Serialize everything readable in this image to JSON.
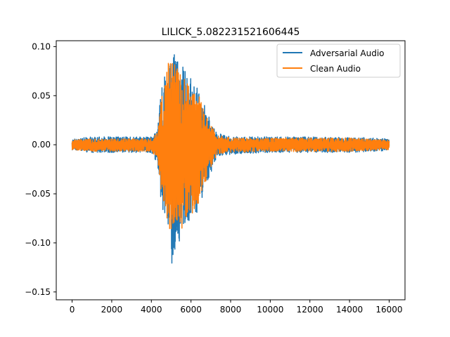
{
  "chart_data": {
    "type": "line",
    "title": "LILICK_5.082231521606445",
    "xlabel": "",
    "ylabel": "",
    "xlim": [
      -800,
      16800
    ],
    "ylim": [
      -0.158,
      0.106
    ],
    "x_ticks": [
      0,
      2000,
      4000,
      6000,
      8000,
      10000,
      12000,
      14000,
      16000
    ],
    "y_ticks": [
      -0.15,
      -0.1,
      -0.05,
      0.0,
      0.05,
      0.1
    ],
    "x_tick_labels": [
      "0",
      "2000",
      "4000",
      "6000",
      "8000",
      "10000",
      "12000",
      "14000",
      "16000"
    ],
    "y_tick_labels": [
      "−0.15",
      "−0.10",
      "−0.05",
      "0.00",
      "0.05",
      "0.10"
    ],
    "grid": false,
    "legend_position": "upper right",
    "series": [
      {
        "name": "Adversarial Audio",
        "color": "#1f77b4",
        "x": [
          0,
          1000,
          2000,
          3000,
          4000,
          4300,
          4500,
          4700,
          4900,
          5000,
          5100,
          5300,
          5500,
          5700,
          5900,
          6100,
          6300,
          6500,
          6700,
          6900,
          7100,
          7300,
          8000,
          10000,
          12000,
          14000,
          16000
        ],
        "max": [
          0.006,
          0.008,
          0.008,
          0.008,
          0.008,
          0.015,
          0.06,
          0.08,
          0.085,
          0.098,
          0.095,
          0.09,
          0.085,
          0.078,
          0.07,
          0.067,
          0.06,
          0.05,
          0.04,
          0.03,
          0.02,
          0.012,
          0.008,
          0.008,
          0.008,
          0.008,
          0.006
        ],
        "min": [
          -0.006,
          -0.008,
          -0.008,
          -0.008,
          -0.008,
          -0.02,
          -0.06,
          -0.075,
          -0.1,
          -0.146,
          -0.11,
          -0.105,
          -0.095,
          -0.085,
          -0.08,
          -0.075,
          -0.07,
          -0.06,
          -0.045,
          -0.035,
          -0.025,
          -0.012,
          -0.01,
          -0.008,
          -0.008,
          -0.008,
          -0.006
        ]
      },
      {
        "name": "Clean Audio",
        "color": "#ff7f0e",
        "x": [
          0,
          1000,
          2000,
          3000,
          4000,
          4300,
          4500,
          4700,
          4900,
          5000,
          5100,
          5300,
          5500,
          5700,
          5900,
          6100,
          6300,
          6500,
          6700,
          6900,
          7100,
          7300,
          8000,
          10000,
          12000,
          14000,
          16000
        ],
        "max": [
          0.005,
          0.006,
          0.006,
          0.006,
          0.007,
          0.012,
          0.05,
          0.068,
          0.09,
          0.088,
          0.085,
          0.08,
          0.075,
          0.07,
          0.065,
          0.06,
          0.055,
          0.045,
          0.035,
          0.025,
          0.018,
          0.01,
          0.007,
          0.007,
          0.007,
          0.007,
          0.005
        ],
        "min": [
          -0.005,
          -0.007,
          -0.007,
          -0.007,
          -0.007,
          -0.015,
          -0.05,
          -0.07,
          -0.09,
          -0.12,
          -0.1,
          -0.095,
          -0.09,
          -0.08,
          -0.075,
          -0.07,
          -0.065,
          -0.055,
          -0.04,
          -0.03,
          -0.02,
          -0.01,
          -0.008,
          -0.007,
          -0.007,
          -0.007,
          -0.005
        ]
      }
    ]
  }
}
